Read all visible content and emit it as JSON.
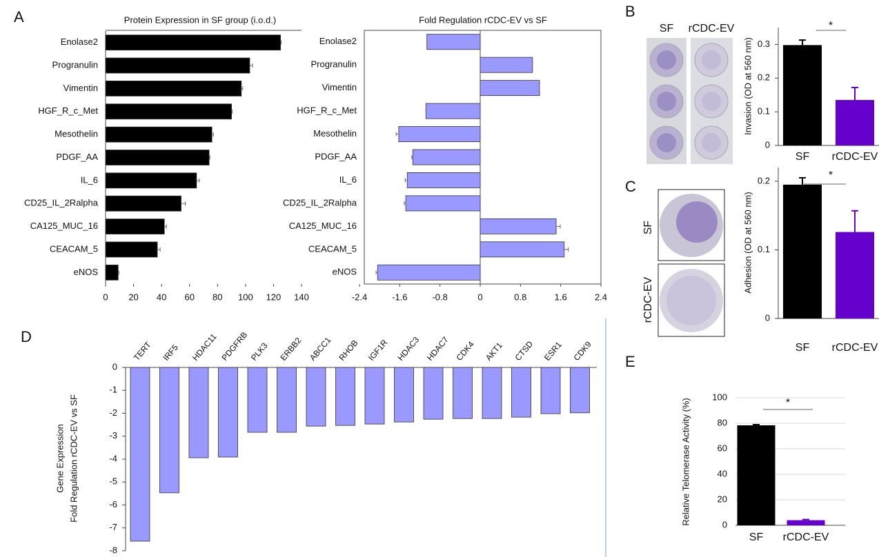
{
  "panel_labels": [
    "A",
    "B",
    "C",
    "D",
    "E"
  ],
  "images": {
    "B": {
      "labels": [
        "SF",
        "rCDC-EV"
      ]
    },
    "C": {
      "labels": [
        "SF",
        "rCDC-EV"
      ]
    }
  },
  "chart_data": [
    {
      "type": "hbar",
      "title": "Protein Expression in SF group (i.o.d.)",
      "categories": [
        "Enolase2",
        "Progranulin",
        "Vimentin",
        "HGF_R_c_Met",
        "Mesothelin",
        "PDGF_AA",
        "IL_6",
        "CD25_IL_2Ralpha",
        "CA125_MUC_16",
        "CEACAM_5",
        "eNOS"
      ],
      "values": [
        125,
        103,
        97,
        90,
        76,
        74,
        65,
        54,
        42,
        37,
        9
      ],
      "errors": [
        0.5,
        2,
        1,
        0.5,
        1,
        0.5,
        2,
        3,
        1.5,
        2,
        0.5
      ],
      "color": "#000000",
      "xlim": [
        0,
        140
      ],
      "xticks": [
        0,
        20,
        40,
        60,
        80,
        100,
        120,
        140
      ]
    },
    {
      "type": "hbar",
      "title": "Fold Regulation rCDC-EV vs SF",
      "categories": [
        "Enolase2",
        "Progranulin",
        "Vimentin",
        "HGF_R_c_Met",
        "Mesothelin",
        "PDGF_AA",
        "IL_6",
        "CD25_IL_2Ralpha",
        "CA125_MUC_16",
        "CEACAM_5",
        "eNOS"
      ],
      "values": [
        -1.06,
        1.04,
        1.18,
        -1.08,
        -1.62,
        -1.34,
        -1.45,
        -1.48,
        1.51,
        1.67,
        -2.04
      ],
      "errors": [
        0,
        0,
        0,
        0,
        0.05,
        0.02,
        0.04,
        0.03,
        0.08,
        0.08,
        0.03
      ],
      "color": "#9999ff",
      "xlim": [
        -2.4,
        2.4
      ],
      "xticks": [
        -2.4,
        -1.6,
        -0.8,
        0,
        0.8,
        1.6,
        2.4
      ]
    },
    {
      "type": "vbar",
      "ylabel": "Invasion (OD at 560 nm)",
      "categories": [
        "SF",
        "rCDC-EV"
      ],
      "values": [
        0.298,
        0.135
      ],
      "errors": [
        0.015,
        0.037
      ],
      "colors": [
        "#000000",
        "#6600cc"
      ],
      "ylim": [
        0,
        0.35
      ],
      "yticks": [
        0,
        0.1,
        0.2,
        0.3
      ],
      "annotation": "*"
    },
    {
      "type": "vbar",
      "ylabel": "Adhesion (OD at 560 nm)",
      "categories": [
        "SF",
        "rCDC-EV"
      ],
      "values": [
        0.195,
        0.126
      ],
      "errors": [
        0.01,
        0.031
      ],
      "colors": [
        "#000000",
        "#6600cc"
      ],
      "ylim": [
        0,
        0.22
      ],
      "yticks": [
        0,
        0.1,
        0.2
      ],
      "annotation": "*"
    },
    {
      "type": "vbar",
      "ylabel": [
        "Gene Expression",
        "Fold Regulation rCDC-EV vs SF"
      ],
      "categories": [
        "TERT",
        "IRF5",
        "HDAC11",
        "PDGFRB",
        "PLK3",
        "ERBB2",
        "ABCC1",
        "RHOB",
        "IGF1R",
        "HDAC3",
        "HDAC7",
        "CDK4",
        "AKT1",
        "CTSD",
        "ESR1",
        "CDK9"
      ],
      "values": [
        -7.58,
        -5.47,
        -3.94,
        -3.91,
        -2.83,
        -2.83,
        -2.56,
        -2.53,
        -2.47,
        -2.38,
        -2.26,
        -2.23,
        -2.23,
        -2.17,
        -2.02,
        -1.98
      ],
      "color": "#9999ff",
      "ylim": [
        -8,
        0
      ],
      "yticks": [
        0,
        -1,
        -2,
        -3,
        -4,
        -5,
        -6,
        -7,
        -8
      ]
    },
    {
      "type": "vbar",
      "ylabel": "Relative Telomerase Activity (%)",
      "categories": [
        "SF",
        "rCDC-EV"
      ],
      "values": [
        78.4,
        4
      ],
      "errors": [
        0.5,
        0.5
      ],
      "colors": [
        "#000000",
        "#6600cc"
      ],
      "ylim": [
        0,
        100
      ],
      "yticks": [
        0,
        20,
        40,
        60,
        80,
        100
      ],
      "grid": true,
      "annotation": "*"
    }
  ]
}
